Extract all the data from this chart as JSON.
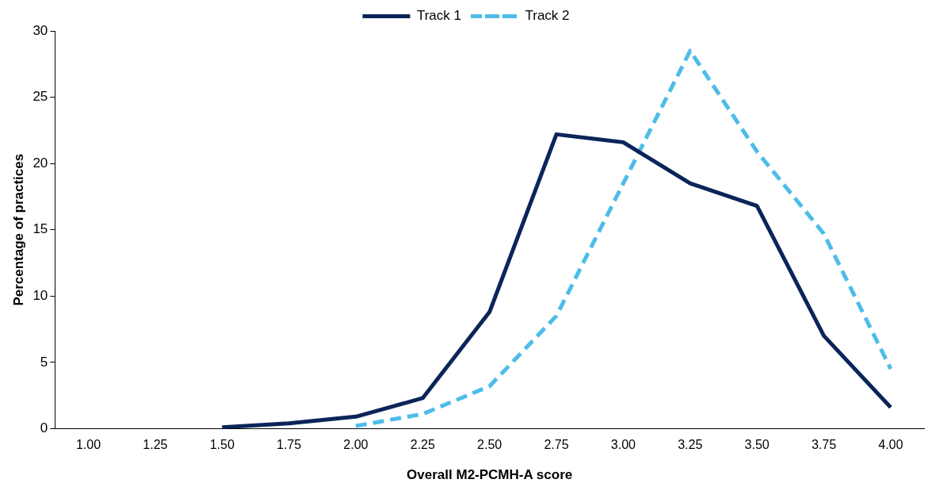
{
  "chart_data": {
    "type": "line",
    "xlabel": "Overall M2-PCMH-A score",
    "ylabel": "Percentage of practices",
    "categories": [
      "1.00",
      "1.25",
      "1.50",
      "1.75",
      "2.00",
      "2.25",
      "2.50",
      "2.75",
      "3.00",
      "3.25",
      "3.50",
      "3.75",
      "4.00"
    ],
    "series": [
      {
        "name": "Track 1",
        "color": "#0b2559",
        "line_style": "solid",
        "values": [
          null,
          null,
          0.1,
          0.4,
          0.9,
          2.3,
          8.8,
          22.2,
          21.6,
          18.5,
          16.8,
          7.0,
          1.6
        ]
      },
      {
        "name": "Track 2",
        "color": "#4dbde8",
        "line_style": "dashed",
        "values": [
          null,
          null,
          null,
          null,
          0.2,
          1.1,
          3.2,
          8.5,
          18.5,
          28.5,
          20.9,
          14.7,
          4.5
        ]
      }
    ],
    "ylim": [
      0,
      30
    ],
    "yticks": [
      0,
      5,
      10,
      15,
      20,
      25,
      30
    ],
    "grid": false,
    "legend": "top",
    "marker": "none"
  }
}
